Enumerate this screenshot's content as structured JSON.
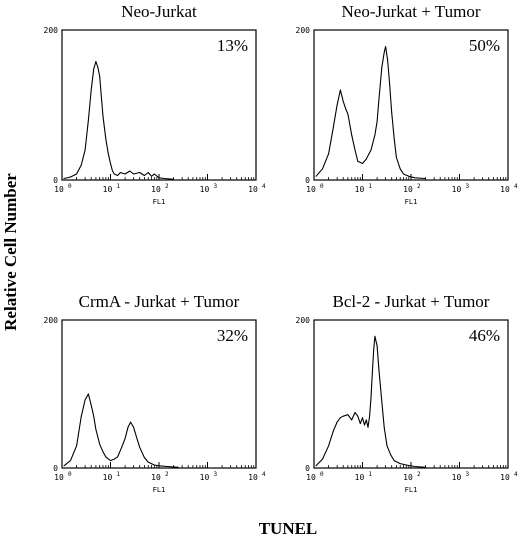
{
  "figure": {
    "ylabel": "Relative Cell Number",
    "xlabel": "TUNEL"
  },
  "chart_data": [
    {
      "type": "line",
      "title": "Neo-Jurkat",
      "annotation": "13%",
      "xlabel": "FL1",
      "x_scale": "log",
      "xlim": [
        1,
        10000
      ],
      "ylim": [
        0,
        200
      ],
      "yticks": [
        "0",
        "200"
      ],
      "xticks": [
        "10",
        "10",
        "10",
        "10",
        "10"
      ],
      "xtick_exponents": [
        "0",
        "1",
        "2",
        "3",
        "4"
      ],
      "series": [
        {
          "x": [
            1.1,
            1.5,
            2,
            2.5,
            3,
            3.5,
            4,
            4.5,
            5,
            5.5,
            6,
            6.5,
            7,
            8,
            9,
            10,
            11,
            12,
            14,
            16,
            20,
            25,
            30,
            40,
            50,
            60,
            70,
            80,
            100,
            130,
            200
          ],
          "values": [
            2,
            4,
            8,
            20,
            40,
            80,
            120,
            148,
            158,
            150,
            138,
            110,
            85,
            55,
            35,
            22,
            12,
            8,
            6,
            10,
            8,
            12,
            8,
            10,
            6,
            10,
            5,
            8,
            3,
            2,
            1
          ]
        }
      ]
    },
    {
      "type": "line",
      "title": "Neo-Jurkat + Tumor",
      "annotation": "50%",
      "xlabel": "FL1",
      "x_scale": "log",
      "xlim": [
        1,
        10000
      ],
      "ylim": [
        0,
        200
      ],
      "yticks": [
        "0",
        "200"
      ],
      "xticks": [
        "10",
        "10",
        "10",
        "10",
        "10"
      ],
      "xtick_exponents": [
        "0",
        "1",
        "2",
        "3",
        "4"
      ],
      "series": [
        {
          "x": [
            1.1,
            1.5,
            2,
            2.5,
            3,
            3.5,
            4,
            4.5,
            5,
            6,
            7,
            8,
            10,
            12,
            15,
            18,
            20,
            22,
            25,
            28,
            30,
            33,
            36,
            40,
            45,
            50,
            60,
            70,
            90,
            120,
            200
          ],
          "values": [
            5,
            15,
            35,
            70,
            100,
            120,
            105,
            95,
            88,
            60,
            40,
            25,
            22,
            28,
            40,
            60,
            78,
            110,
            150,
            170,
            178,
            160,
            130,
            90,
            55,
            30,
            15,
            8,
            5,
            3,
            2
          ]
        }
      ]
    },
    {
      "type": "line",
      "title": "CrmA - Jurkat + Tumor",
      "annotation": "32%",
      "xlabel": "FL1",
      "x_scale": "log",
      "xlim": [
        1,
        10000
      ],
      "ylim": [
        0,
        200
      ],
      "yticks": [
        "0",
        "200"
      ],
      "xticks": [
        "10",
        "10",
        "10",
        "10",
        "10"
      ],
      "xtick_exponents": [
        "0",
        "1",
        "2",
        "3",
        "4"
      ],
      "series": [
        {
          "x": [
            1.1,
            1.5,
            2,
            2.5,
            3,
            3.5,
            4,
            4.5,
            5,
            6,
            7,
            8,
            10,
            12,
            14,
            17,
            20,
            23,
            26,
            30,
            35,
            40,
            50,
            60,
            80,
            100,
            150,
            250
          ],
          "values": [
            3,
            10,
            30,
            70,
            92,
            100,
            85,
            70,
            52,
            32,
            22,
            15,
            10,
            12,
            15,
            28,
            40,
            55,
            62,
            55,
            40,
            28,
            14,
            8,
            4,
            3,
            2,
            1
          ]
        }
      ]
    },
    {
      "type": "line",
      "title": "Bcl-2 - Jurkat + Tumor",
      "annotation": "46%",
      "xlabel": "FL1",
      "x_scale": "log",
      "xlim": [
        1,
        10000
      ],
      "ylim": [
        0,
        200
      ],
      "yticks": [
        "0",
        "200"
      ],
      "xticks": [
        "10",
        "10",
        "10",
        "10",
        "10"
      ],
      "xtick_exponents": [
        "0",
        "1",
        "2",
        "3",
        "4"
      ],
      "series": [
        {
          "x": [
            1.1,
            1.5,
            2,
            2.5,
            3,
            3.5,
            4,
            5,
            6,
            7,
            8,
            9,
            10,
            11,
            12,
            13,
            14,
            15,
            16,
            17,
            18,
            20,
            22,
            25,
            28,
            32,
            38,
            45,
            60,
            80,
            120,
            200
          ],
          "values": [
            3,
            12,
            30,
            50,
            62,
            68,
            70,
            72,
            65,
            75,
            70,
            60,
            68,
            58,
            65,
            55,
            70,
            95,
            130,
            160,
            178,
            165,
            130,
            90,
            55,
            30,
            18,
            10,
            6,
            4,
            2,
            1
          ]
        }
      ]
    }
  ]
}
